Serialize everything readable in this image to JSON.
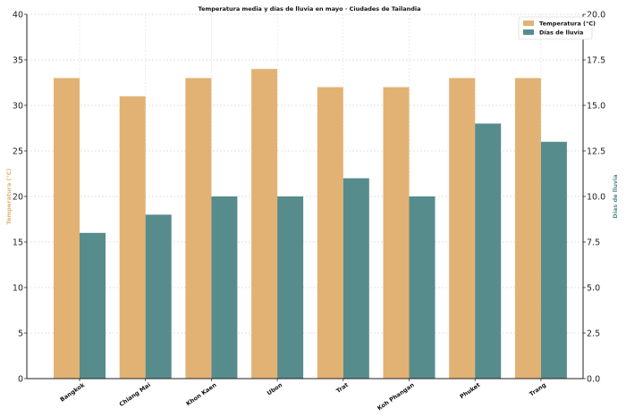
{
  "chart_data": {
    "type": "bar",
    "title": "Temperatura media y días de lluvia en mayo · Ciudades de Tailandia",
    "categories": [
      "Bangkok",
      "Chiang Mai",
      "Khon Kaen",
      "Ubon",
      "Trat",
      "Koh Phangan",
      "Phuket",
      "Trang"
    ],
    "series": [
      {
        "name": "Temperatura (°C)",
        "axis": "left",
        "color": "#e2b274",
        "values": [
          33,
          31,
          33,
          34,
          32,
          32,
          33,
          33
        ]
      },
      {
        "name": "Días de lluvia",
        "axis": "right",
        "color": "#568c8c",
        "values": [
          8,
          9,
          10,
          10,
          11,
          10,
          14,
          13
        ]
      }
    ],
    "ylabel_left": "Temperatura (°C)",
    "ylabel_right": "Días de lluvia",
    "ylim_left": [
      0,
      40
    ],
    "ylim_right": [
      0,
      20
    ],
    "yticks_left": [
      "0",
      "5",
      "10",
      "15",
      "20",
      "25",
      "30",
      "35",
      "40"
    ],
    "yticks_right": [
      "0.0",
      "2.5",
      "5.0",
      "7.5",
      "10.0",
      "12.5",
      "15.0",
      "17.5",
      "20.0"
    ],
    "grid": true,
    "legend_position": "top-right"
  }
}
